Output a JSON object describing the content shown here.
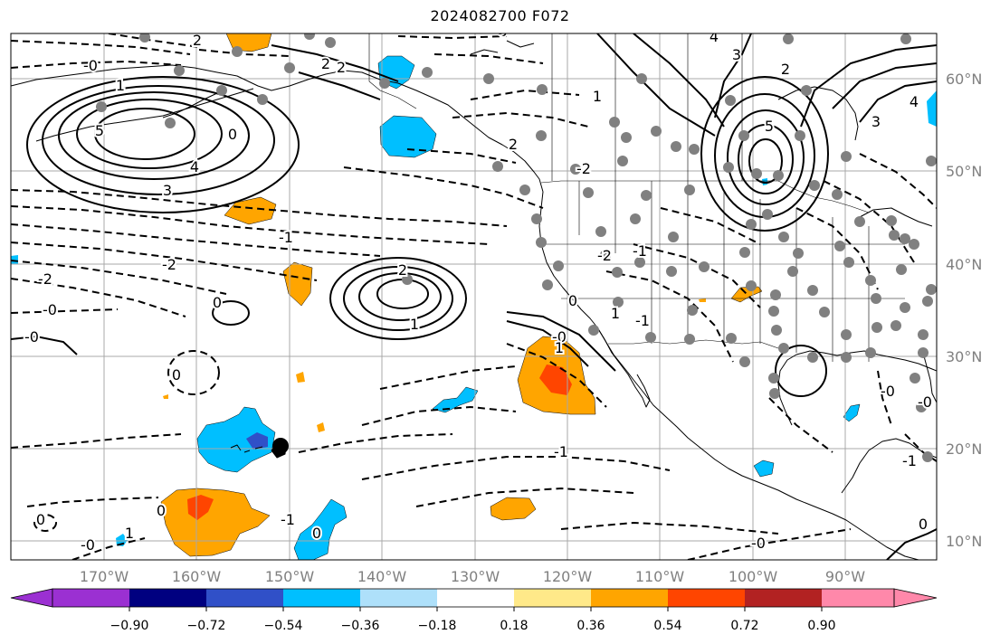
{
  "title": "2024082700 F072",
  "map": {
    "lon_ticks": [
      "170°W",
      "160°W",
      "150°W",
      "140°W",
      "130°W",
      "120°W",
      "110°W",
      "100°W",
      "90°W"
    ],
    "lat_ticks": [
      "60°N",
      "50°N",
      "40°N",
      "30°N",
      "20°N",
      "10°N"
    ],
    "contour_labels": [
      "-0",
      "2",
      "-0",
      "2",
      "1",
      "5",
      "4",
      "3",
      "0",
      "-2",
      "-0",
      "2",
      "0",
      "-1",
      "2",
      "-2",
      "-0",
      "0",
      "-0",
      "2",
      "1",
      "-1",
      "0",
      "-0",
      "-2",
      "1",
      "4",
      "3",
      "2",
      "1",
      "3",
      "4",
      "5",
      "-2",
      "-1",
      "-0",
      "0",
      "0",
      "1",
      "-1",
      "-0",
      "0",
      "-1",
      "-0",
      "-0",
      "0",
      "-1",
      "1"
    ],
    "colors": {
      "coast": "#000000",
      "grid": "#a8a8a8",
      "station_dot": "#808080",
      "storm_marker": "#000000"
    }
  },
  "colorbar": {
    "colors": [
      "#9b30d2",
      "#000080",
      "#3050c8",
      "#00bfff",
      "#aee0fa",
      "#ffffff",
      "#ffe989",
      "#ffa500",
      "#ff4500",
      "#b22222",
      "#ff88aa"
    ],
    "tick_labels": [
      "−0.90",
      "−0.72",
      "−0.54",
      "−0.36",
      "−0.18",
      "0.18",
      "0.36",
      "0.54",
      "0.72",
      "0.90"
    ]
  }
}
